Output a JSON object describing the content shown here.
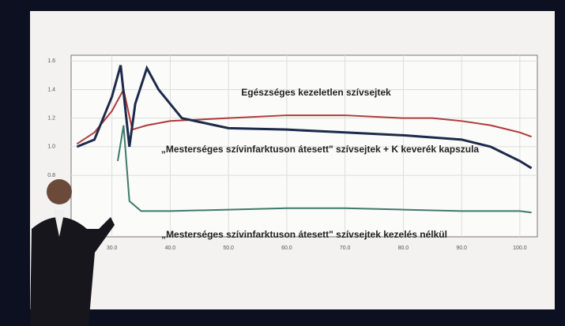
{
  "chart_data": {
    "type": "line",
    "xlim": [
      23,
      103
    ],
    "ylim": [
      0.37,
      1.64
    ],
    "xticks": [
      {
        "value": 30,
        "label": "30.0"
      },
      {
        "value": 40,
        "label": "40.0"
      },
      {
        "value": 50,
        "label": "50.0"
      },
      {
        "value": 60,
        "label": "60.0"
      },
      {
        "value": 70,
        "label": "70.0"
      },
      {
        "value": 80,
        "label": "80.0"
      },
      {
        "value": 90,
        "label": "90.0"
      },
      {
        "value": 100,
        "label": "100.0"
      }
    ],
    "yticks": [
      0.8,
      {
        "value": 1,
        "label": "1.0"
      },
      1.2,
      1.4,
      1.6
    ],
    "grid": true,
    "series": [
      {
        "name": "Egészséges kezeletlen szívsejtek",
        "color": "#b03a3a",
        "x": [
          24,
          27,
          30,
          32,
          33.5,
          36,
          40,
          50,
          60,
          70,
          80,
          85,
          90,
          95,
          100,
          102
        ],
        "values": [
          1.02,
          1.1,
          1.25,
          1.4,
          1.12,
          1.15,
          1.18,
          1.2,
          1.22,
          1.22,
          1.2,
          1.2,
          1.18,
          1.15,
          1.1,
          1.07
        ]
      },
      {
        "name": "„Mesterséges szívinfarktuson átesett\" szívsejtek + K keverék kapszula",
        "color": "#1d2a4a",
        "x": [
          24,
          27,
          30,
          31.5,
          33,
          34,
          36,
          38,
          42,
          50,
          60,
          70,
          80,
          90,
          95,
          100,
          102
        ],
        "values": [
          1.0,
          1.05,
          1.35,
          1.57,
          1.0,
          1.3,
          1.55,
          1.4,
          1.2,
          1.13,
          1.12,
          1.1,
          1.08,
          1.05,
          1.0,
          0.9,
          0.85
        ]
      },
      {
        "name": "„Mesterséges szívinfarktuson átesett\" szívsejtek kezelés nélkül",
        "color": "#3f7a6a",
        "x": [
          31,
          32,
          33,
          35,
          40,
          50,
          60,
          70,
          80,
          90,
          100,
          102
        ],
        "values": [
          0.9,
          1.15,
          0.62,
          0.55,
          0.55,
          0.56,
          0.57,
          0.57,
          0.56,
          0.55,
          0.55,
          0.54
        ]
      }
    ]
  }
}
